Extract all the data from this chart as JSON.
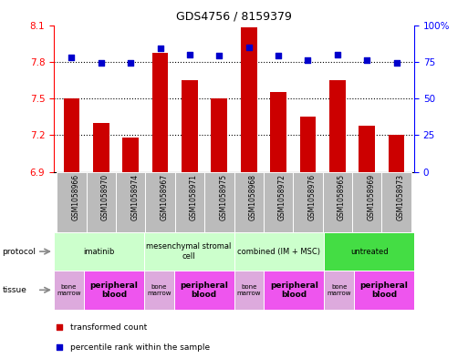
{
  "title": "GDS4756 / 8159379",
  "samples": [
    "GSM1058966",
    "GSM1058970",
    "GSM1058974",
    "GSM1058967",
    "GSM1058971",
    "GSM1058975",
    "GSM1058968",
    "GSM1058972",
    "GSM1058976",
    "GSM1058965",
    "GSM1058969",
    "GSM1058973"
  ],
  "bar_values": [
    7.5,
    7.3,
    7.18,
    7.87,
    7.65,
    7.5,
    8.08,
    7.55,
    7.35,
    7.65,
    7.28,
    7.2
  ],
  "dot_values": [
    78,
    74,
    74,
    84,
    80,
    79,
    85,
    79,
    76,
    80,
    76,
    74
  ],
  "bar_color": "#cc0000",
  "dot_color": "#0000cc",
  "ylim_left": [
    6.9,
    8.1
  ],
  "ylim_right": [
    0,
    100
  ],
  "yticks_left": [
    6.9,
    7.2,
    7.5,
    7.8,
    8.1
  ],
  "yticks_right": [
    0,
    25,
    50,
    75,
    100
  ],
  "ytick_labels_right": [
    "0",
    "25",
    "50",
    "75",
    "100%"
  ],
  "hlines": [
    7.2,
    7.5,
    7.8
  ],
  "protocols": [
    {
      "label": "imatinib",
      "start": 0,
      "end": 3,
      "color": "#ccffcc"
    },
    {
      "label": "mesenchymal stromal\ncell",
      "start": 3,
      "end": 6,
      "color": "#ccffcc"
    },
    {
      "label": "combined (IM + MSC)",
      "start": 6,
      "end": 9,
      "color": "#ccffcc"
    },
    {
      "label": "untreated",
      "start": 9,
      "end": 12,
      "color": "#44dd44"
    }
  ],
  "tissues": [
    {
      "label": "bone\nmarrow",
      "start": 0,
      "end": 1,
      "color": "#ddaadd"
    },
    {
      "label": "peripheral\nblood",
      "start": 1,
      "end": 3,
      "color": "#ee55ee"
    },
    {
      "label": "bone\nmarrow",
      "start": 3,
      "end": 4,
      "color": "#ddaadd"
    },
    {
      "label": "peripheral\nblood",
      "start": 4,
      "end": 6,
      "color": "#ee55ee"
    },
    {
      "label": "bone\nmarrow",
      "start": 6,
      "end": 7,
      "color": "#ddaadd"
    },
    {
      "label": "peripheral\nblood",
      "start": 7,
      "end": 9,
      "color": "#ee55ee"
    },
    {
      "label": "bone\nmarrow",
      "start": 9,
      "end": 10,
      "color": "#ddaadd"
    },
    {
      "label": "peripheral\nblood",
      "start": 10,
      "end": 12,
      "color": "#ee55ee"
    }
  ],
  "legend_items": [
    {
      "label": "transformed count",
      "color": "#cc0000"
    },
    {
      "label": "percentile rank within the sample",
      "color": "#0000cc"
    }
  ],
  "background_color": "#ffffff",
  "bar_bottom": 6.9,
  "bar_width": 0.55,
  "sample_label_bg": "#bbbbbb",
  "sample_divider_color": "#ffffff"
}
